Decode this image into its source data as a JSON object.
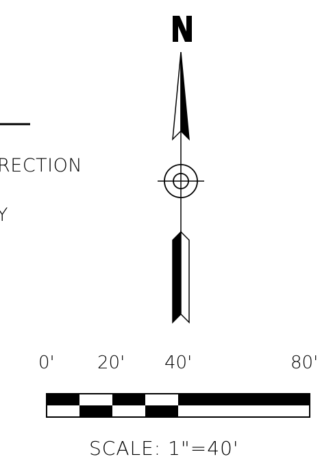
{
  "north_arrow": {
    "letter": "N"
  },
  "labels": {
    "partial_text_1": "RECTION",
    "partial_text_2": "Y"
  },
  "scale_bar": {
    "ticks": [
      "0'",
      "20'",
      "40'",
      "80'"
    ],
    "caption": "SCALE:  1\"=40'"
  },
  "colors": {
    "ink": "#000000",
    "paper": "#ffffff"
  }
}
